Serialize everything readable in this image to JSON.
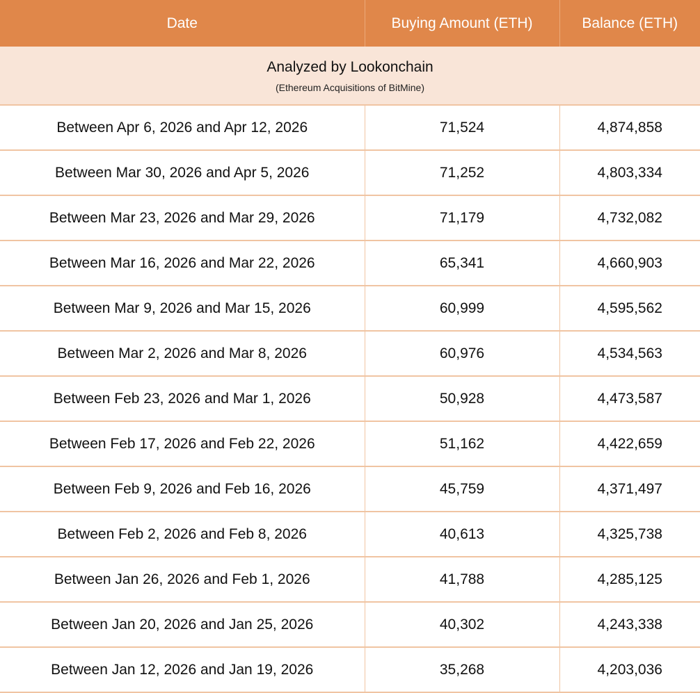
{
  "colors": {
    "header_bg": "#E0874A",
    "subheader_bg": "#F9E5D8",
    "border": "#F0C4A2"
  },
  "chart_data": {
    "type": "table",
    "columns": [
      "Date",
      "Buying Amount (ETH)",
      "Balance (ETH)"
    ],
    "title": "Analyzed by Lookonchain",
    "subtitle": "(Ethereum Acquisitions of BitMine)",
    "rows": [
      [
        "Between Apr 6, 2026 and Apr 12, 2026",
        "71,524",
        "4,874,858"
      ],
      [
        "Between Mar 30, 2026 and Apr 5, 2026",
        "71,252",
        "4,803,334"
      ],
      [
        "Between Mar 23, 2026 and Mar 29, 2026",
        "71,179",
        "4,732,082"
      ],
      [
        "Between Mar 16, 2026 and Mar 22, 2026",
        "65,341",
        "4,660,903"
      ],
      [
        "Between Mar 9, 2026 and Mar 15, 2026",
        "60,999",
        "4,595,562"
      ],
      [
        "Between Mar 2, 2026 and Mar 8, 2026",
        "60,976",
        "4,534,563"
      ],
      [
        "Between Feb 23, 2026 and Mar 1, 2026",
        "50,928",
        "4,473,587"
      ],
      [
        "Between Feb 17, 2026 and Feb 22, 2026",
        "51,162",
        "4,422,659"
      ],
      [
        "Between Feb 9, 2026 and Feb 16, 2026",
        "45,759",
        "4,371,497"
      ],
      [
        "Between Feb 2, 2026 and Feb 8, 2026",
        "40,613",
        "4,325,738"
      ],
      [
        "Between Jan 26, 2026 and Feb 1, 2026",
        "41,788",
        "4,285,125"
      ],
      [
        "Between Jan 20, 2026 and Jan 25, 2026",
        "40,302",
        "4,243,338"
      ],
      [
        "Between Jan 12, 2026 and Jan 19, 2026",
        "35,268",
        "4,203,036"
      ]
    ]
  }
}
